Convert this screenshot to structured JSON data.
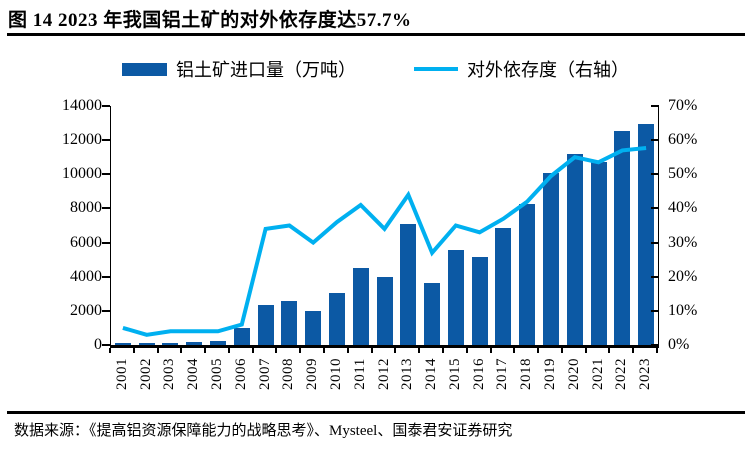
{
  "title": "图 14 2023 年我国铝土矿的对外依存度达57.7%",
  "legend": {
    "bar_label": "铝土矿进口量（万吨）",
    "line_label": "对外依存度（右轴）"
  },
  "colors": {
    "bar": "#0C59A4",
    "line": "#00B0F0",
    "axis": "#000000"
  },
  "source": "数据来源：《提高铝资源保障能力的战略思考》、Mysteel、国泰君安证券研究",
  "chart_data": {
    "type": "bar",
    "title": "图 14 2023 年我国铝土矿的对外依存度达57.7%",
    "categories": [
      "2001",
      "2002",
      "2003",
      "2004",
      "2005",
      "2006",
      "2007",
      "2008",
      "2009",
      "2010",
      "2011",
      "2012",
      "2013",
      "2014",
      "2015",
      "2016",
      "2017",
      "2018",
      "2019",
      "2020",
      "2021",
      "2022",
      "2023"
    ],
    "series": [
      {
        "name": "铝土矿进口量（万吨）",
        "type": "bar",
        "axis": "left",
        "color": "#0C59A4",
        "values": [
          100,
          90,
          120,
          170,
          220,
          970,
          2330,
          2580,
          1970,
          3060,
          4500,
          3960,
          7070,
          3630,
          5580,
          5180,
          6860,
          8260,
          10070,
          11160,
          10740,
          12550,
          12950
        ]
      },
      {
        "name": "对外依存度（右轴）",
        "type": "line",
        "axis": "right",
        "color": "#00B0F0",
        "values": [
          5,
          3,
          4,
          4,
          4,
          6,
          34,
          35,
          30,
          36,
          41,
          34,
          44,
          27,
          35,
          33,
          37,
          42,
          49.5,
          55,
          53.5,
          57,
          57.7
        ]
      }
    ],
    "left_axis": {
      "min": 0,
      "max": 14000,
      "tick_step": 2000,
      "tick_labels": [
        "0",
        "2000",
        "4000",
        "6000",
        "8000",
        "10000",
        "12000",
        "14000"
      ]
    },
    "right_axis": {
      "min": 0,
      "max": 70,
      "tick_step": 10,
      "tick_labels": [
        "0%",
        "10%",
        "20%",
        "30%",
        "40%",
        "50%",
        "60%",
        "70%"
      ]
    },
    "legend_position": "top",
    "grid": false,
    "xlabel": "",
    "ylabel": ""
  }
}
